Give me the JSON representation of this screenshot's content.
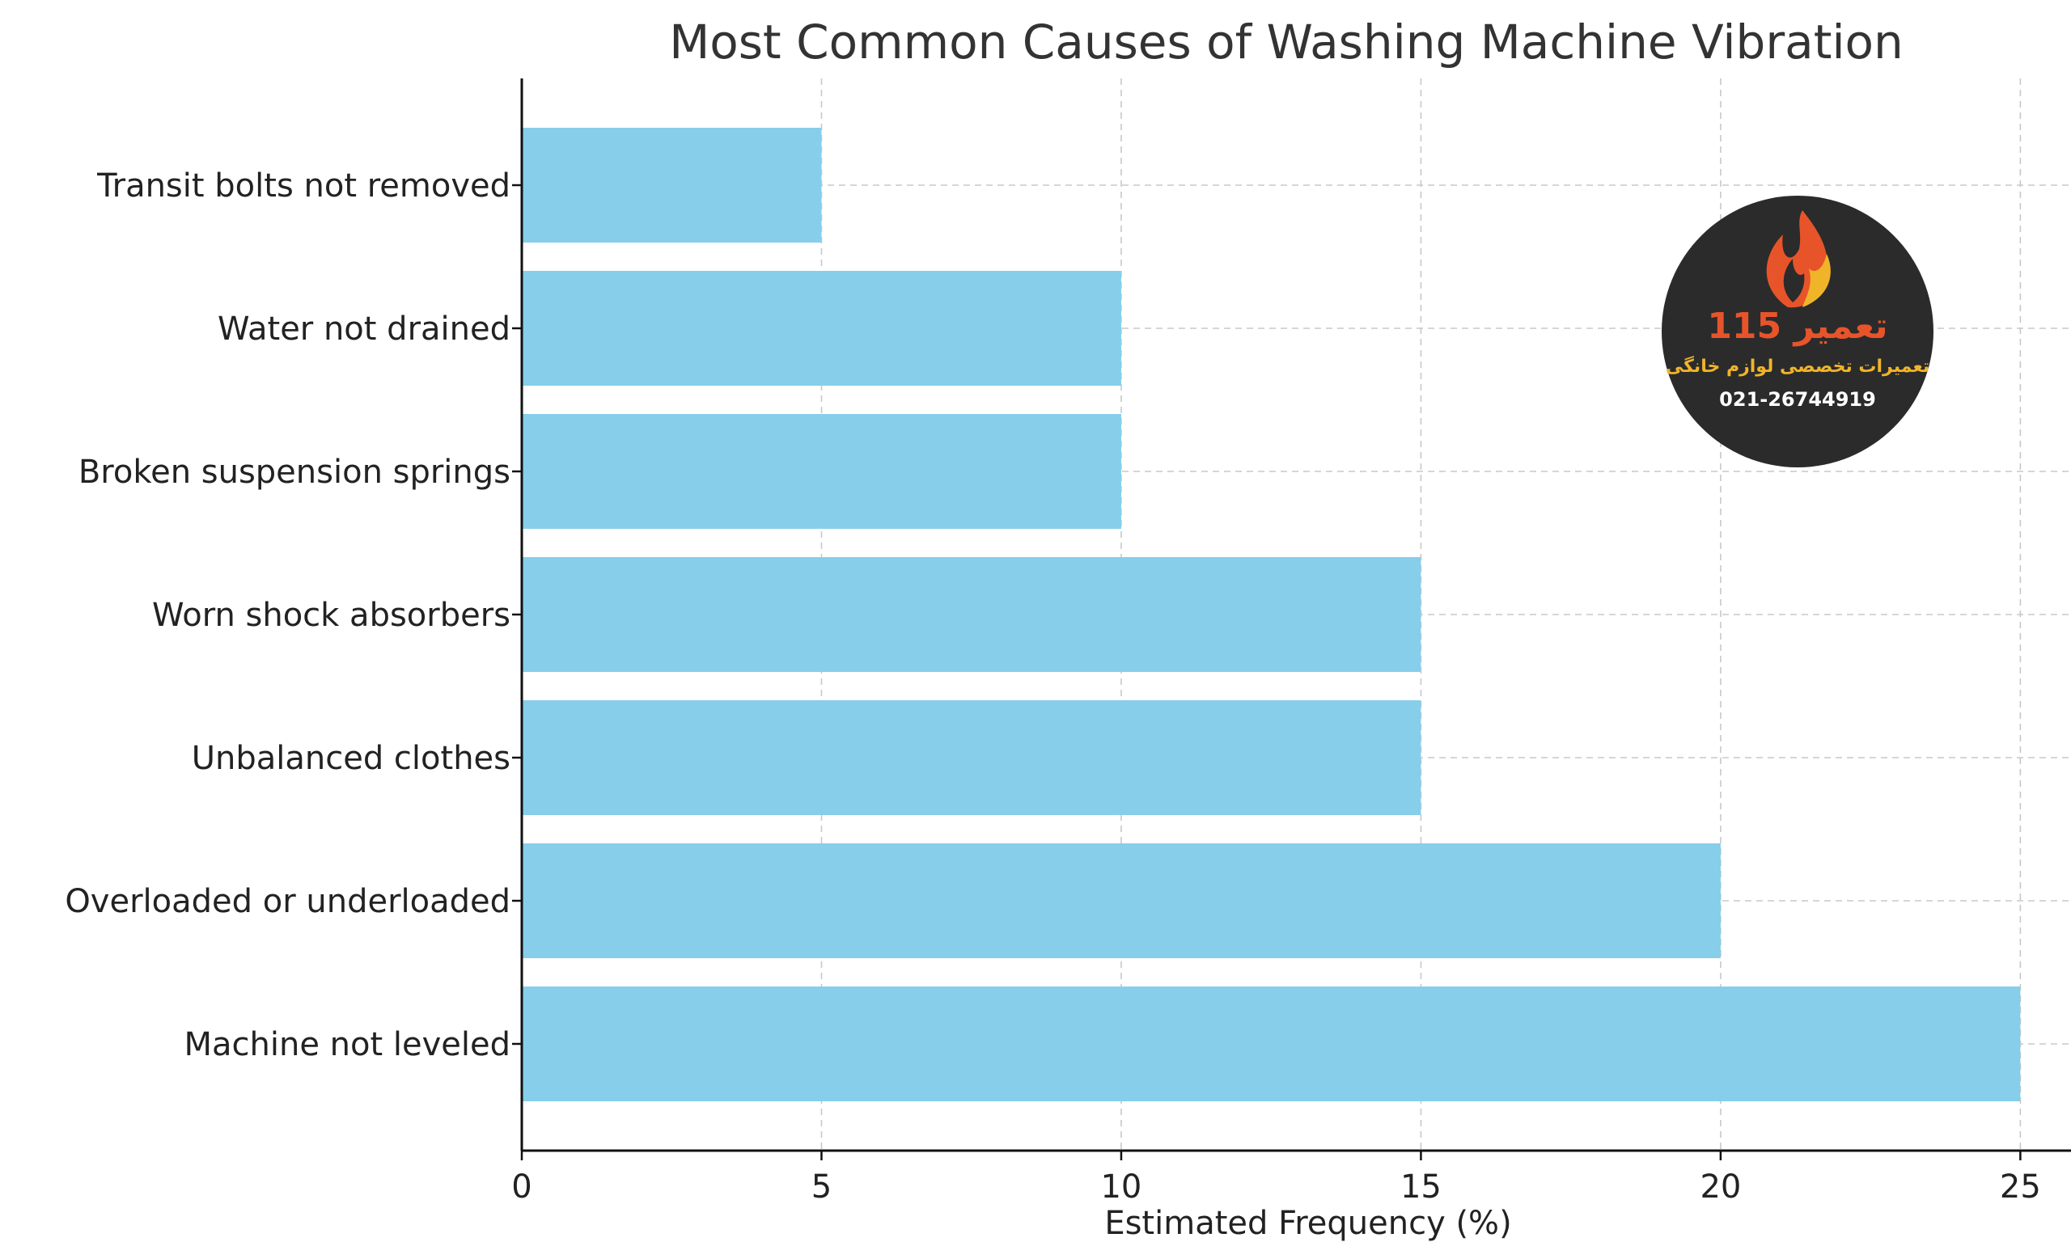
{
  "chart_data": {
    "type": "bar",
    "orientation": "horizontal",
    "title": "Most Common Causes of Washing Machine Vibration",
    "xlabel": "Estimated Frequency (%)",
    "ylabel": "",
    "categories": [
      "Machine not leveled",
      "Overloaded or underloaded",
      "Unbalanced clothes",
      "Worn shock absorbers",
      "Broken suspension springs",
      "Water not drained",
      "Transit bolts not removed"
    ],
    "values": [
      25,
      20,
      15,
      15,
      10,
      10,
      5
    ],
    "xlim": [
      0,
      26.25
    ],
    "xticks": [
      0,
      5,
      10,
      15,
      20,
      25
    ],
    "grid": true,
    "bar_color": "#87CEEB"
  },
  "watermark": {
    "title": "تعمیر 115",
    "subtitle": "تعمیرات تخصصی لوازم خانگی",
    "phone": "021-26744919",
    "background_color": "#2b2b2b",
    "title_color": "#e8542a",
    "subtitle_color": "#f0b429",
    "icon": "flame-icon"
  }
}
